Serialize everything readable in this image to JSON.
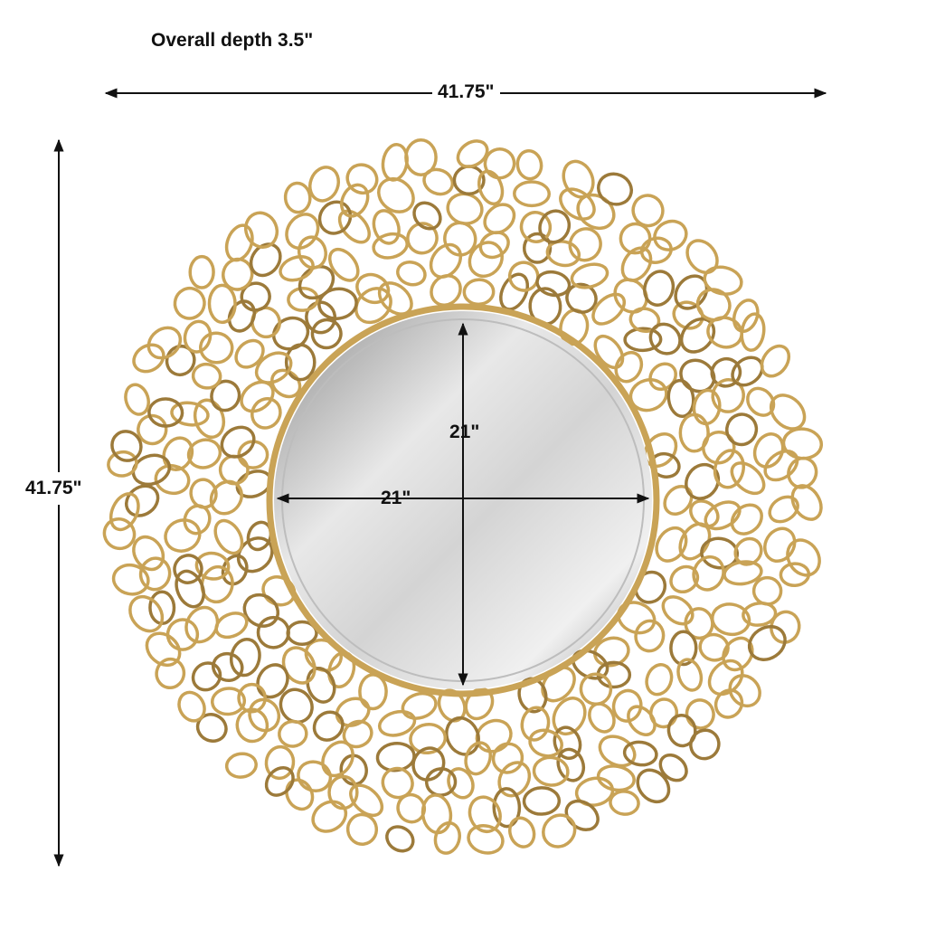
{
  "depth_label": "Overall depth 3.5\"",
  "dimensions": {
    "overall_width": "41.75\"",
    "overall_height": "41.75\"",
    "mirror_width": "21\"",
    "mirror_height": "21\""
  },
  "colors": {
    "frame_gold": "#c9a356",
    "frame_gold_dark": "#9c7a3a",
    "mirror_glass": "#c9c9c9",
    "arrow": "#111111"
  }
}
